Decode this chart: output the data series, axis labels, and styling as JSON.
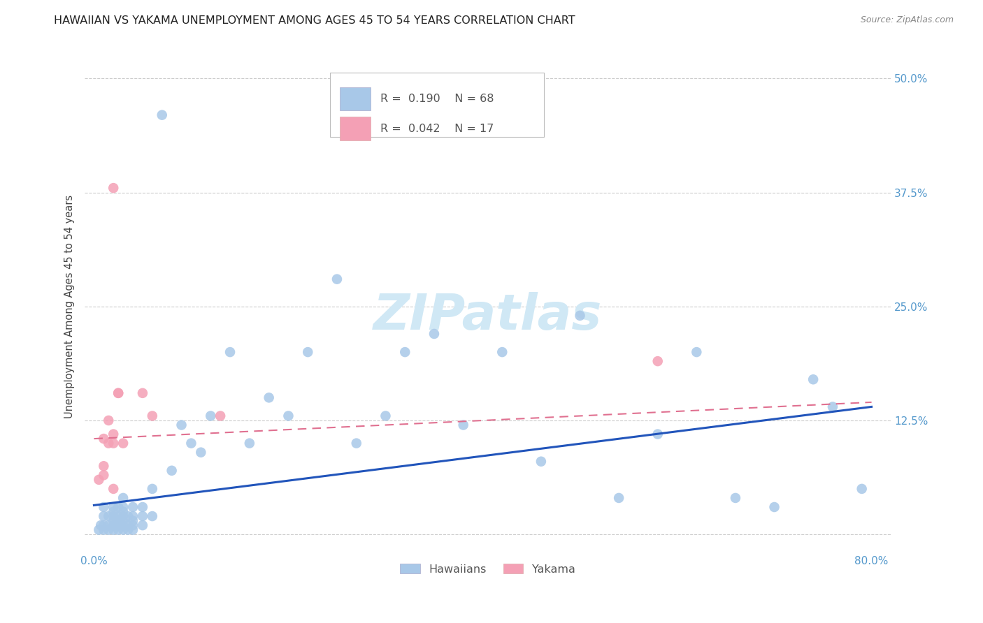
{
  "title": "HAWAIIAN VS YAKAMA UNEMPLOYMENT AMONG AGES 45 TO 54 YEARS CORRELATION CHART",
  "source": "Source: ZipAtlas.com",
  "ylabel": "Unemployment Among Ages 45 to 54 years",
  "xlim": [
    -0.01,
    0.82
  ],
  "ylim": [
    -0.02,
    0.52
  ],
  "xtick_positions": [
    0.0,
    0.2,
    0.4,
    0.6,
    0.8
  ],
  "xtick_labels": [
    "0.0%",
    "",
    "",
    "",
    "80.0%"
  ],
  "ytick_positions": [
    0.0,
    0.125,
    0.25,
    0.375,
    0.5
  ],
  "ytick_labels_right": [
    "",
    "12.5%",
    "25.0%",
    "37.5%",
    "50.0%"
  ],
  "hawaiian_R": 0.19,
  "hawaiian_N": 68,
  "yakama_R": 0.042,
  "yakama_N": 17,
  "hawaiian_color": "#a8c8e8",
  "yakama_color": "#f4a0b5",
  "hawaiian_line_color": "#2255bb",
  "yakama_line_color": "#e07090",
  "background_color": "#ffffff",
  "grid_color": "#cccccc",
  "watermark_text": "ZIPatlas",
  "watermark_color": "#d0e8f5",
  "hawaiian_x": [
    0.005,
    0.007,
    0.01,
    0.01,
    0.01,
    0.01,
    0.015,
    0.015,
    0.015,
    0.02,
    0.02,
    0.02,
    0.02,
    0.02,
    0.02,
    0.025,
    0.025,
    0.025,
    0.025,
    0.025,
    0.03,
    0.03,
    0.03,
    0.03,
    0.03,
    0.03,
    0.03,
    0.035,
    0.035,
    0.035,
    0.04,
    0.04,
    0.04,
    0.04,
    0.04,
    0.05,
    0.05,
    0.05,
    0.06,
    0.06,
    0.07,
    0.08,
    0.09,
    0.1,
    0.11,
    0.12,
    0.14,
    0.16,
    0.18,
    0.2,
    0.22,
    0.25,
    0.27,
    0.3,
    0.32,
    0.35,
    0.38,
    0.42,
    0.46,
    0.5,
    0.54,
    0.58,
    0.62,
    0.66,
    0.7,
    0.74,
    0.76,
    0.79
  ],
  "hawaiian_y": [
    0.005,
    0.01,
    0.005,
    0.01,
    0.02,
    0.03,
    0.005,
    0.01,
    0.02,
    0.005,
    0.01,
    0.015,
    0.02,
    0.025,
    0.03,
    0.005,
    0.01,
    0.015,
    0.02,
    0.03,
    0.005,
    0.01,
    0.015,
    0.02,
    0.025,
    0.03,
    0.04,
    0.005,
    0.01,
    0.02,
    0.005,
    0.01,
    0.015,
    0.02,
    0.03,
    0.01,
    0.02,
    0.03,
    0.02,
    0.05,
    0.46,
    0.07,
    0.12,
    0.1,
    0.09,
    0.13,
    0.2,
    0.1,
    0.15,
    0.13,
    0.2,
    0.28,
    0.1,
    0.13,
    0.2,
    0.22,
    0.12,
    0.2,
    0.08,
    0.24,
    0.04,
    0.11,
    0.2,
    0.04,
    0.03,
    0.17,
    0.14,
    0.05
  ],
  "yakama_x": [
    0.005,
    0.01,
    0.01,
    0.01,
    0.015,
    0.015,
    0.02,
    0.02,
    0.02,
    0.02,
    0.025,
    0.025,
    0.03,
    0.05,
    0.06,
    0.13,
    0.58
  ],
  "yakama_y": [
    0.06,
    0.065,
    0.075,
    0.105,
    0.1,
    0.125,
    0.05,
    0.1,
    0.11,
    0.38,
    0.155,
    0.155,
    0.1,
    0.155,
    0.13,
    0.13,
    0.19
  ],
  "hawaiian_trendline_x": [
    0.0,
    0.8
  ],
  "hawaiian_trendline_y": [
    0.032,
    0.14
  ],
  "yakama_trendline_x": [
    0.0,
    0.8
  ],
  "yakama_trendline_y": [
    0.105,
    0.145
  ],
  "title_fontsize": 11.5,
  "axis_label_fontsize": 10.5,
  "tick_fontsize": 11,
  "legend_fontsize": 11.5,
  "watermark_fontsize": 52
}
